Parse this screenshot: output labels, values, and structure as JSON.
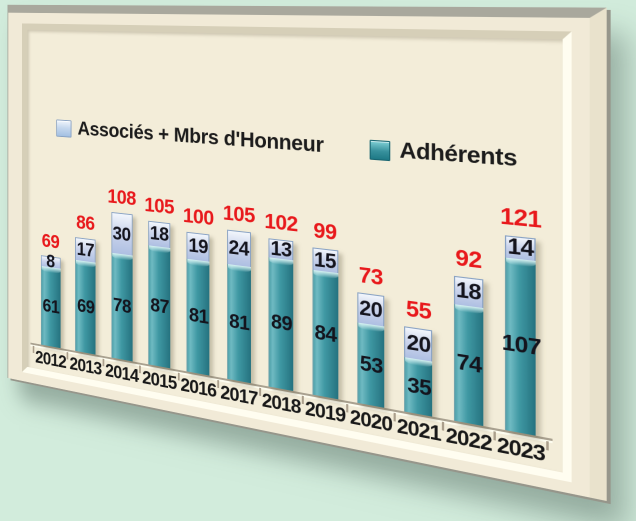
{
  "colors": {
    "page_background": "#d2ecdc",
    "frame_face": "#f1ead7",
    "frame_top_edge": "#a9a89d",
    "frame_right_edge": "#e9e2cc",
    "canvas": "#f3edd9",
    "axis": "#a9a190",
    "associes_fill": "#bdcde8",
    "adherents_fill": "#3f98a3",
    "total_label": "#e8191c",
    "value_label": "#14141d",
    "year_label": "#181818"
  },
  "chart_data": {
    "type": "bar",
    "stacked": true,
    "title": "",
    "xlabel": "",
    "ylabel": "",
    "grid": false,
    "legend_position": "top",
    "ylim": [
      0,
      130
    ],
    "categories": [
      "2012",
      "2013",
      "2014",
      "2015",
      "2016",
      "2017",
      "2018",
      "2019",
      "2020",
      "2021",
      "2022",
      "2023"
    ],
    "series": [
      {
        "name": "Associés + Mbrs d'Honneur",
        "color": "#bdcde8",
        "values": [
          8,
          17,
          30,
          18,
          19,
          24,
          13,
          15,
          20,
          20,
          18,
          14
        ]
      },
      {
        "name": "Adhérents",
        "color": "#3f98a3",
        "values": [
          61,
          69,
          78,
          87,
          81,
          81,
          89,
          84,
          53,
          35,
          74,
          107
        ]
      }
    ],
    "totals": [
      69,
      86,
      108,
      105,
      100,
      105,
      102,
      99,
      73,
      55,
      92,
      121
    ],
    "value_labels": "on segments, dark",
    "total_labels": "above bars, red"
  }
}
